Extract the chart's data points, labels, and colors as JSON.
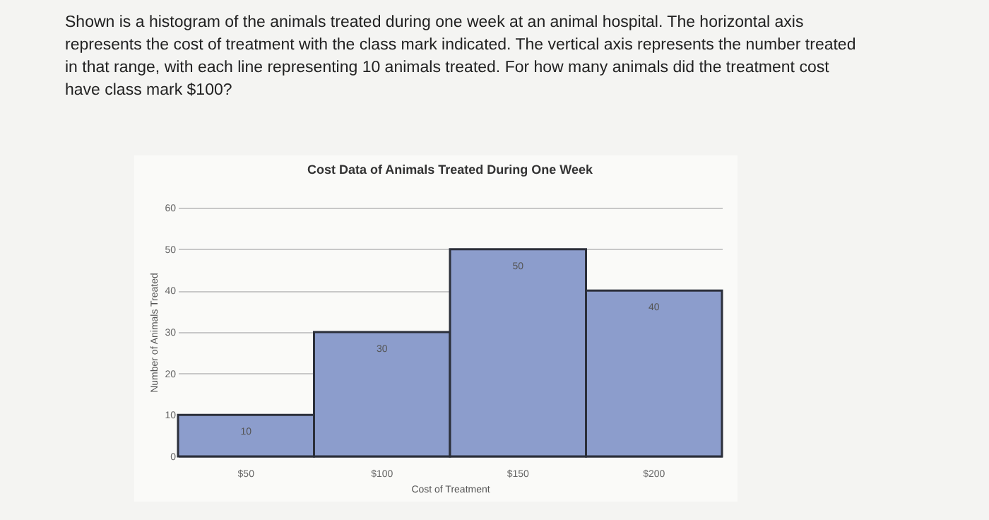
{
  "chart_data": {
    "type": "bar",
    "title": "Cost Data of Animals Treated During One Week",
    "xlabel": "Cost of Treatment",
    "ylabel": "Number of Animals Treated",
    "annotations": [
      "Shown is a histogram of the animals treated during one week at an animal hospital. The horizontal axis represents the cost of treatment with the class mark indicated. The vertical axis represents the number treated in that range, with each line representing 10 animals treated. For how many animals did the treatment cost have class mark $100?"
    ],
    "categories": [
      "$50",
      "$100",
      "$150",
      "$200"
    ],
    "values": [
      10,
      30,
      50,
      40
    ],
    "color": "#8c9dcc",
    "ylim": [
      0,
      60
    ],
    "yticks": [
      0,
      10,
      20,
      30,
      40,
      50,
      60
    ],
    "grid": "y",
    "data_labels": true
  }
}
